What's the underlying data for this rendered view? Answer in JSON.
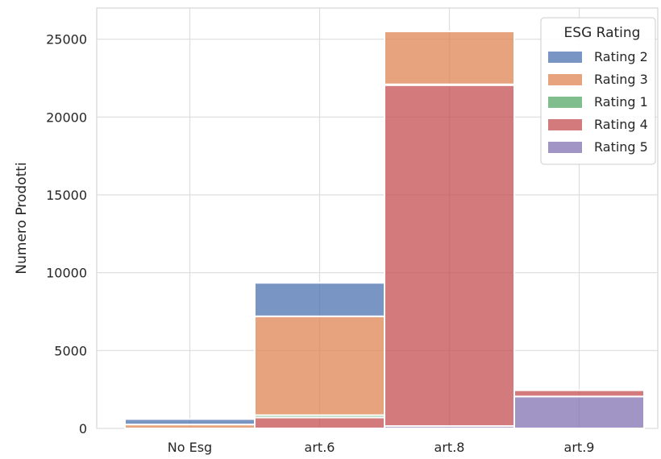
{
  "chart_data": {
    "type": "bar",
    "stacked": true,
    "categories": [
      "No Esg",
      "art.6",
      "art.8",
      "art.9"
    ],
    "ylabel": "Numero Prodotti",
    "ylim": [
      0,
      27000
    ],
    "yticks": [
      0,
      5000,
      10000,
      15000,
      20000,
      25000
    ],
    "grid": true,
    "legend": {
      "title": "ESG Rating",
      "placement": "top-right"
    },
    "series": [
      {
        "name": "Rating 2",
        "color": "#4c72b0",
        "values": [
          350,
          2150,
          0,
          0
        ]
      },
      {
        "name": "Rating 3",
        "color": "#dd8452",
        "values": [
          250,
          6350,
          3400,
          0
        ]
      },
      {
        "name": "Rating 1",
        "color": "#55a868",
        "values": [
          0,
          150,
          50,
          0
        ]
      },
      {
        "name": "Rating 4",
        "color": "#c44e52",
        "values": [
          0,
          700,
          21900,
          400
        ]
      },
      {
        "name": "Rating 5",
        "color": "#8172b3",
        "values": [
          0,
          0,
          150,
          2050
        ]
      }
    ],
    "stack_order": [
      "Rating 5",
      "Rating 4",
      "Rating 1",
      "Rating 3",
      "Rating 2"
    ]
  }
}
